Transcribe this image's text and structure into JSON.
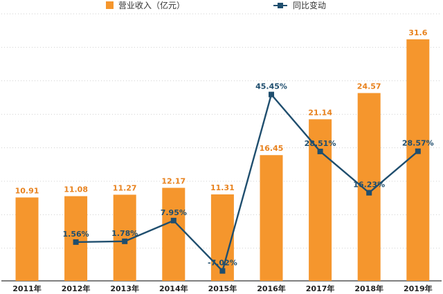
{
  "chart_data": {
    "type": "bar",
    "categories": [
      "2011年",
      "2012年",
      "2013年",
      "2014年",
      "2015年",
      "2016年",
      "2017年",
      "2018年",
      "2019年"
    ],
    "series": [
      {
        "name": "营业收入（亿元）",
        "kind": "bar",
        "values": [
          10.91,
          11.08,
          11.27,
          12.17,
          11.31,
          16.45,
          21.14,
          24.57,
          31.6
        ],
        "labels": [
          "10.91",
          "11.08",
          "11.27",
          "12.17",
          "11.31",
          "16.45",
          "21.14",
          "24.57",
          "31.6"
        ],
        "color": "#F5962D"
      },
      {
        "name": "同比变动",
        "kind": "line",
        "values": [
          null,
          1.56,
          1.78,
          7.95,
          -7.02,
          45.45,
          28.51,
          16.23,
          28.57
        ],
        "labels": [
          "",
          "1.56%",
          "1.78%",
          "7.95%",
          "-7.02%",
          "45.45%",
          "28.51%",
          "16.23%",
          "28.57%"
        ],
        "color": "#1F4E6E"
      }
    ],
    "legend": "top-center",
    "grid": true
  }
}
